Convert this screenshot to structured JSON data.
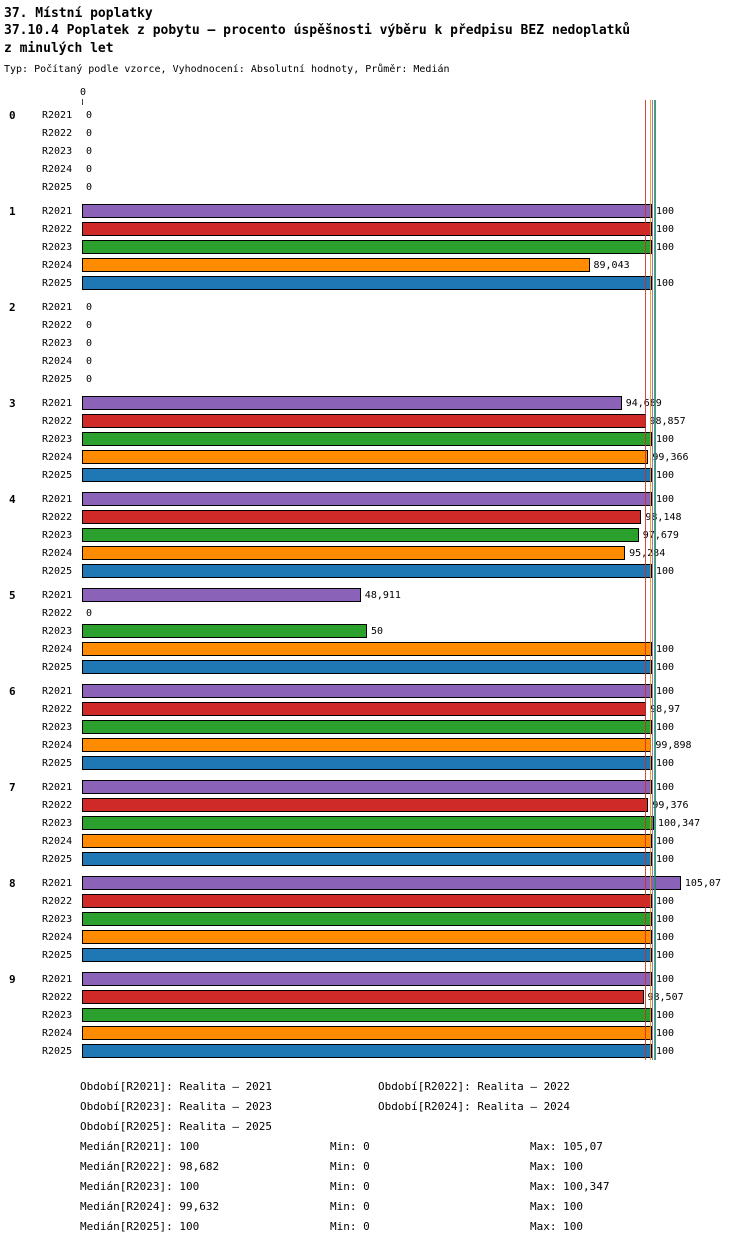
{
  "header": {
    "chapter": "37. Místní poplatky",
    "title_lines": [
      "37.10.4 Poplatek z pobytu – procento úspěšnosti výběru k předpisu BEZ nedoplatků",
      "z minulých let"
    ],
    "subtitle": "Typ: Počítaný podle vzorce, Vyhodnocení: Absolutní hodnoty, Průměr: Medián"
  },
  "chart_data": {
    "type": "bar",
    "orientation": "horizontal",
    "title": "37.10.4 Poplatek z pobytu – procento úspěšnosti výběru k předpisu BEZ nedoplatků z minulých let",
    "x_axis": {
      "zero_tick_label": "0",
      "xlim": [
        0,
        110
      ],
      "grid": false
    },
    "legend_position": "bottom",
    "series_names": [
      "R2021",
      "R2022",
      "R2023",
      "R2024",
      "R2025"
    ],
    "series_colors": [
      "#8a62b8",
      "#cf2a27",
      "#2ca02c",
      "#ff8c00",
      "#1f77b4"
    ],
    "groups": [
      {
        "label": "0",
        "values": [
          0,
          0,
          0,
          0,
          0
        ],
        "value_labels": [
          "0",
          "0",
          "0",
          "0",
          "0"
        ]
      },
      {
        "label": "1",
        "values": [
          100,
          100,
          100,
          89.043,
          100
        ],
        "value_labels": [
          "100",
          "100",
          "100",
          "89,043",
          "100"
        ]
      },
      {
        "label": "2",
        "values": [
          0,
          0,
          0,
          0,
          0
        ],
        "value_labels": [
          "0",
          "0",
          "0",
          "0",
          "0"
        ]
      },
      {
        "label": "3",
        "values": [
          94.689,
          98.857,
          100,
          99.366,
          100
        ],
        "value_labels": [
          "94,689",
          "98,857",
          "100",
          "99,366",
          "100"
        ]
      },
      {
        "label": "4",
        "values": [
          100,
          98.148,
          97.679,
          95.284,
          100
        ],
        "value_labels": [
          "100",
          "98,148",
          "97,679",
          "95,284",
          "100"
        ]
      },
      {
        "label": "5",
        "values": [
          48.911,
          0,
          50,
          100,
          100
        ],
        "value_labels": [
          "48,911",
          "0",
          "50",
          "100",
          "100"
        ]
      },
      {
        "label": "6",
        "values": [
          100,
          98.97,
          100,
          99.898,
          100
        ],
        "value_labels": [
          "100",
          "98,97",
          "100",
          "99,898",
          "100"
        ]
      },
      {
        "label": "7",
        "values": [
          100,
          99.376,
          100.347,
          100,
          100
        ],
        "value_labels": [
          "100",
          "99,376",
          "100,347",
          "100",
          "100"
        ]
      },
      {
        "label": "8",
        "values": [
          105.07,
          100,
          100,
          100,
          100
        ],
        "value_labels": [
          "105,07",
          "100",
          "100",
          "100",
          "100"
        ]
      },
      {
        "label": "9",
        "values": [
          100,
          98.507,
          100,
          100,
          100
        ],
        "value_labels": [
          "100",
          "98,507",
          "100",
          "100",
          "100"
        ]
      }
    ],
    "medians": [
      100,
      98.682,
      100,
      99.632,
      100
    ],
    "mins": [
      0,
      0,
      0,
      0,
      0
    ],
    "maxes": [
      105.07,
      100,
      100.347,
      100,
      100
    ]
  },
  "legend": {
    "periods": [
      {
        "label": "Období[R2021]:",
        "value": "Realita – 2021"
      },
      {
        "label": "Období[R2022]:",
        "value": "Realita – 2022"
      },
      {
        "label": "Období[R2023]:",
        "value": "Realita – 2023"
      },
      {
        "label": "Období[R2024]:",
        "value": "Realita – 2024"
      },
      {
        "label": "Období[R2025]:",
        "value": "Realita – 2025"
      }
    ],
    "stats": [
      {
        "label": "Medián[R2021]:",
        "value": "100",
        "min": "Min: 0",
        "max": "Max: 105,07"
      },
      {
        "label": "Medián[R2022]:",
        "value": "98,682",
        "min": "Min: 0",
        "max": "Max: 100"
      },
      {
        "label": "Medián[R2023]:",
        "value": "100",
        "min": "Min: 0",
        "max": "Max: 100,347"
      },
      {
        "label": "Medián[R2024]:",
        "value": "99,632",
        "min": "Min: 0",
        "max": "Max: 100"
      },
      {
        "label": "Medián[R2025]:",
        "value": "100",
        "min": "Min: 0",
        "max": "Max: 100"
      }
    ]
  }
}
